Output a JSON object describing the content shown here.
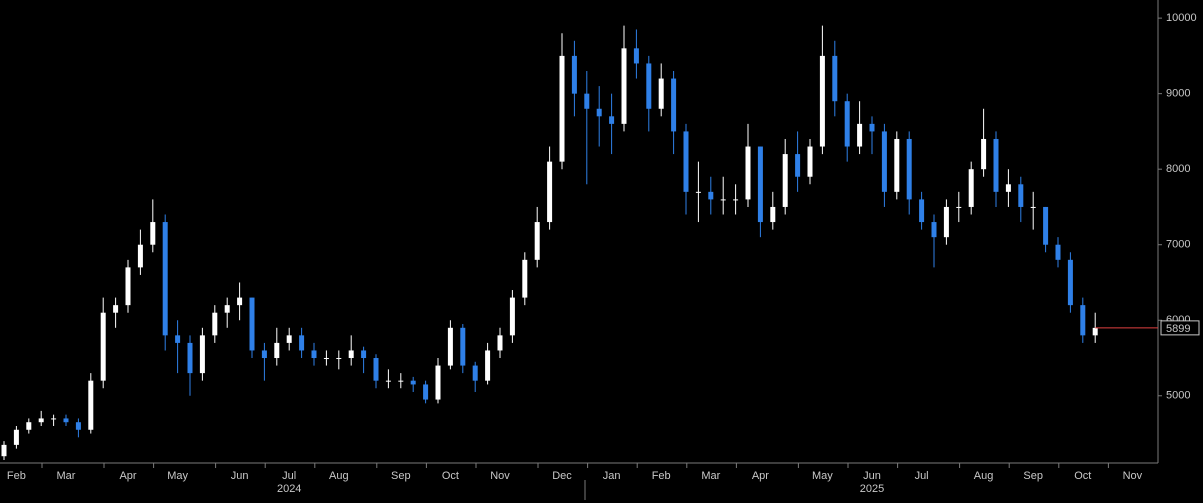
{
  "chart_data": {
    "type": "candlestick",
    "categories": [
      null,
      "Feb",
      null,
      null,
      null,
      "Mar",
      null,
      null,
      null,
      null,
      "Apr",
      null,
      null,
      null,
      "May",
      null,
      null,
      null,
      null,
      "Jun",
      null,
      null,
      null,
      "Jul",
      null,
      null,
      null,
      "Aug",
      null,
      null,
      null,
      null,
      "Sep",
      null,
      null,
      null,
      "Oct",
      null,
      null,
      null,
      "Nov",
      null,
      null,
      null,
      null,
      "Dec",
      null,
      null,
      null,
      "Jan",
      null,
      null,
      null,
      "Feb",
      null,
      null,
      null,
      "Mar",
      null,
      null,
      null,
      "Apr",
      null,
      null,
      null,
      null,
      "May",
      null,
      null,
      null,
      "Jun",
      null,
      null,
      null,
      "Jul",
      null,
      null,
      null,
      null,
      "Aug",
      null,
      null,
      null,
      "Sep",
      null,
      null,
      null,
      "Oct",
      null,
      null,
      null,
      "Nov"
    ],
    "years": [
      "2024",
      "2025"
    ],
    "open": [
      4200,
      4350,
      4550,
      4650,
      4700,
      4700,
      4650,
      4550,
      5200,
      6100,
      6200,
      6700,
      7000,
      7300,
      5800,
      5700,
      5300,
      5800,
      6100,
      6200,
      6300,
      5600,
      5500,
      5700,
      5800,
      5600,
      5500,
      5500,
      5500,
      5600,
      5500,
      5200,
      5200,
      5200,
      5150,
      4950,
      5400,
      5900,
      5400,
      5200,
      5600,
      5800,
      6300,
      6800,
      7300,
      8100,
      9500,
      9000,
      8800,
      8700,
      8600,
      9600,
      9400,
      8800,
      9200,
      8500,
      7700,
      7700,
      7600,
      7600,
      7600,
      8300,
      7300,
      7500,
      8200,
      7900,
      8300,
      9500,
      8900,
      8300,
      8600,
      8500,
      7700,
      8400,
      7600,
      7300,
      7100,
      7500,
      7500,
      8000,
      8400,
      7700,
      7800,
      7500,
      7500,
      7000,
      6800,
      6200,
      5800,
      null,
      null,
      null
    ],
    "high": [
      4400,
      4600,
      4700,
      4800,
      4750,
      4750,
      4700,
      5300,
      6300,
      6300,
      6800,
      7200,
      7600,
      7400,
      6000,
      5800,
      5900,
      6200,
      6300,
      6500,
      6300,
      5700,
      5900,
      5900,
      5900,
      5700,
      5600,
      5600,
      5800,
      5650,
      5550,
      5350,
      5300,
      5250,
      5200,
      5500,
      6000,
      5950,
      5450,
      5700,
      5900,
      6400,
      6900,
      7500,
      8300,
      9800,
      9700,
      9300,
      9100,
      9000,
      9900,
      9850,
      9500,
      9400,
      9300,
      8600,
      8100,
      7900,
      7900,
      7800,
      8600,
      8300,
      7700,
      8400,
      8500,
      8400,
      9900,
      9700,
      9000,
      8900,
      8700,
      8600,
      8500,
      8500,
      7700,
      7400,
      7600,
      7700,
      8100,
      8800,
      8500,
      8000,
      7900,
      7700,
      7500,
      7100,
      6900,
      6300,
      6100,
      null,
      null,
      null
    ],
    "low": [
      4150,
      4300,
      4500,
      4600,
      4600,
      4600,
      4450,
      4500,
      5100,
      5900,
      6100,
      6600,
      6900,
      5600,
      5300,
      5000,
      5200,
      5700,
      5900,
      6000,
      5500,
      5200,
      5400,
      5600,
      5500,
      5400,
      5400,
      5350,
      5400,
      5300,
      5100,
      5100,
      5100,
      5050,
      4900,
      4900,
      5350,
      5300,
      5050,
      5150,
      5500,
      5700,
      6200,
      6700,
      7200,
      8000,
      8700,
      7800,
      8300,
      8200,
      8500,
      9200,
      8500,
      8700,
      8200,
      7400,
      7300,
      7400,
      7400,
      7400,
      7500,
      7100,
      7200,
      7400,
      7700,
      7800,
      8200,
      8700,
      8100,
      8200,
      8200,
      7500,
      7600,
      7400,
      7200,
      6700,
      7000,
      7300,
      7400,
      7900,
      7500,
      7500,
      7300,
      7200,
      6900,
      6700,
      6100,
      5700,
      5700,
      null,
      null,
      null
    ],
    "close": [
      4350,
      4550,
      4650,
      4700,
      4700,
      4650,
      4550,
      5200,
      6100,
      6200,
      6700,
      7000,
      7300,
      5800,
      5700,
      5300,
      5800,
      6100,
      6200,
      6300,
      5600,
      5500,
      5700,
      5800,
      5600,
      5500,
      5500,
      5500,
      5600,
      5500,
      5200,
      5200,
      5200,
      5150,
      4950,
      5400,
      5900,
      5400,
      5200,
      5600,
      5800,
      6300,
      6800,
      7300,
      8100,
      9500,
      9000,
      8800,
      8700,
      8600,
      9600,
      9400,
      8800,
      9200,
      8500,
      7700,
      7700,
      7600,
      7600,
      7600,
      8300,
      7300,
      7500,
      8200,
      7900,
      8300,
      9500,
      8900,
      8300,
      8600,
      8500,
      7700,
      8400,
      7600,
      7300,
      7100,
      7500,
      7500,
      8000,
      8400,
      7700,
      7800,
      7500,
      7500,
      7000,
      6800,
      6200,
      5800,
      5899,
      null,
      null,
      null
    ],
    "up_color": "#ffffff",
    "down_color": "#2f80e8",
    "last_color": "#e04040",
    "ylim": [
      4110,
      10240
    ],
    "yticks": [
      5000,
      6000,
      7000,
      8000,
      9000,
      10000
    ]
  }
}
